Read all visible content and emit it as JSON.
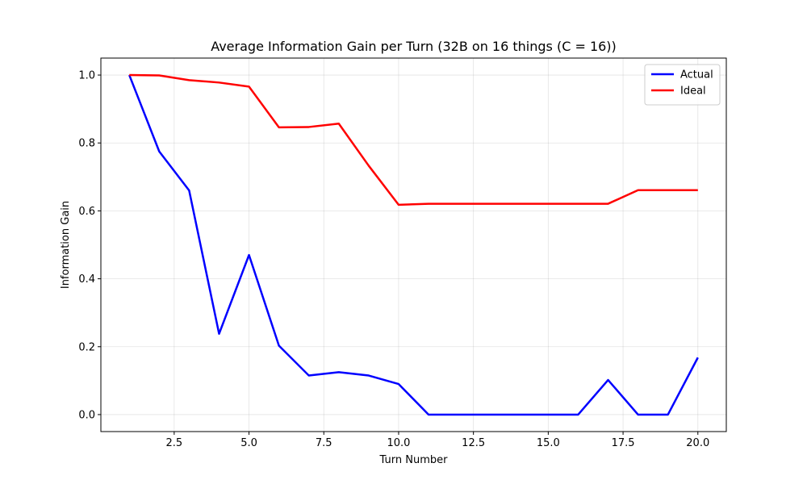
{
  "chart_data": {
    "type": "line",
    "title": "Average Information Gain per Turn (32B on 16 things (C = 16))",
    "xlabel": "Turn Number",
    "ylabel": "Information Gain",
    "xlim": [
      0.05,
      20.95
    ],
    "ylim": [
      -0.05,
      1.05
    ],
    "x_ticks": [
      2.5,
      5.0,
      7.5,
      10.0,
      12.5,
      15.0,
      17.5,
      20.0
    ],
    "x_tick_labels": [
      "2.5",
      "5.0",
      "7.5",
      "10.0",
      "12.5",
      "15.0",
      "17.5",
      "20.0"
    ],
    "y_ticks": [
      0.0,
      0.2,
      0.4,
      0.6,
      0.8,
      1.0
    ],
    "y_tick_labels": [
      "0.0",
      "0.2",
      "0.4",
      "0.6",
      "0.8",
      "1.0"
    ],
    "grid": true,
    "legend_position": "top-right",
    "x": [
      1,
      2,
      3,
      4,
      5,
      6,
      7,
      8,
      9,
      10,
      11,
      12,
      13,
      14,
      15,
      16,
      17,
      18,
      19,
      20
    ],
    "series": [
      {
        "name": "Actual",
        "color": "#0000ff",
        "values": [
          1.0,
          0.775,
          0.66,
          0.238,
          0.47,
          0.203,
          0.115,
          0.125,
          0.115,
          0.09,
          0.0,
          0.0,
          0.0,
          0.0,
          0.0,
          0.0,
          0.102,
          0.0,
          0.0,
          0.168
        ]
      },
      {
        "name": "Ideal",
        "color": "#ff0000",
        "values": [
          1.0,
          0.999,
          0.985,
          0.978,
          0.966,
          0.846,
          0.847,
          0.857,
          0.733,
          0.618,
          0.621,
          0.621,
          0.621,
          0.621,
          0.621,
          0.621,
          0.621,
          0.661,
          0.661,
          0.661
        ]
      }
    ]
  }
}
